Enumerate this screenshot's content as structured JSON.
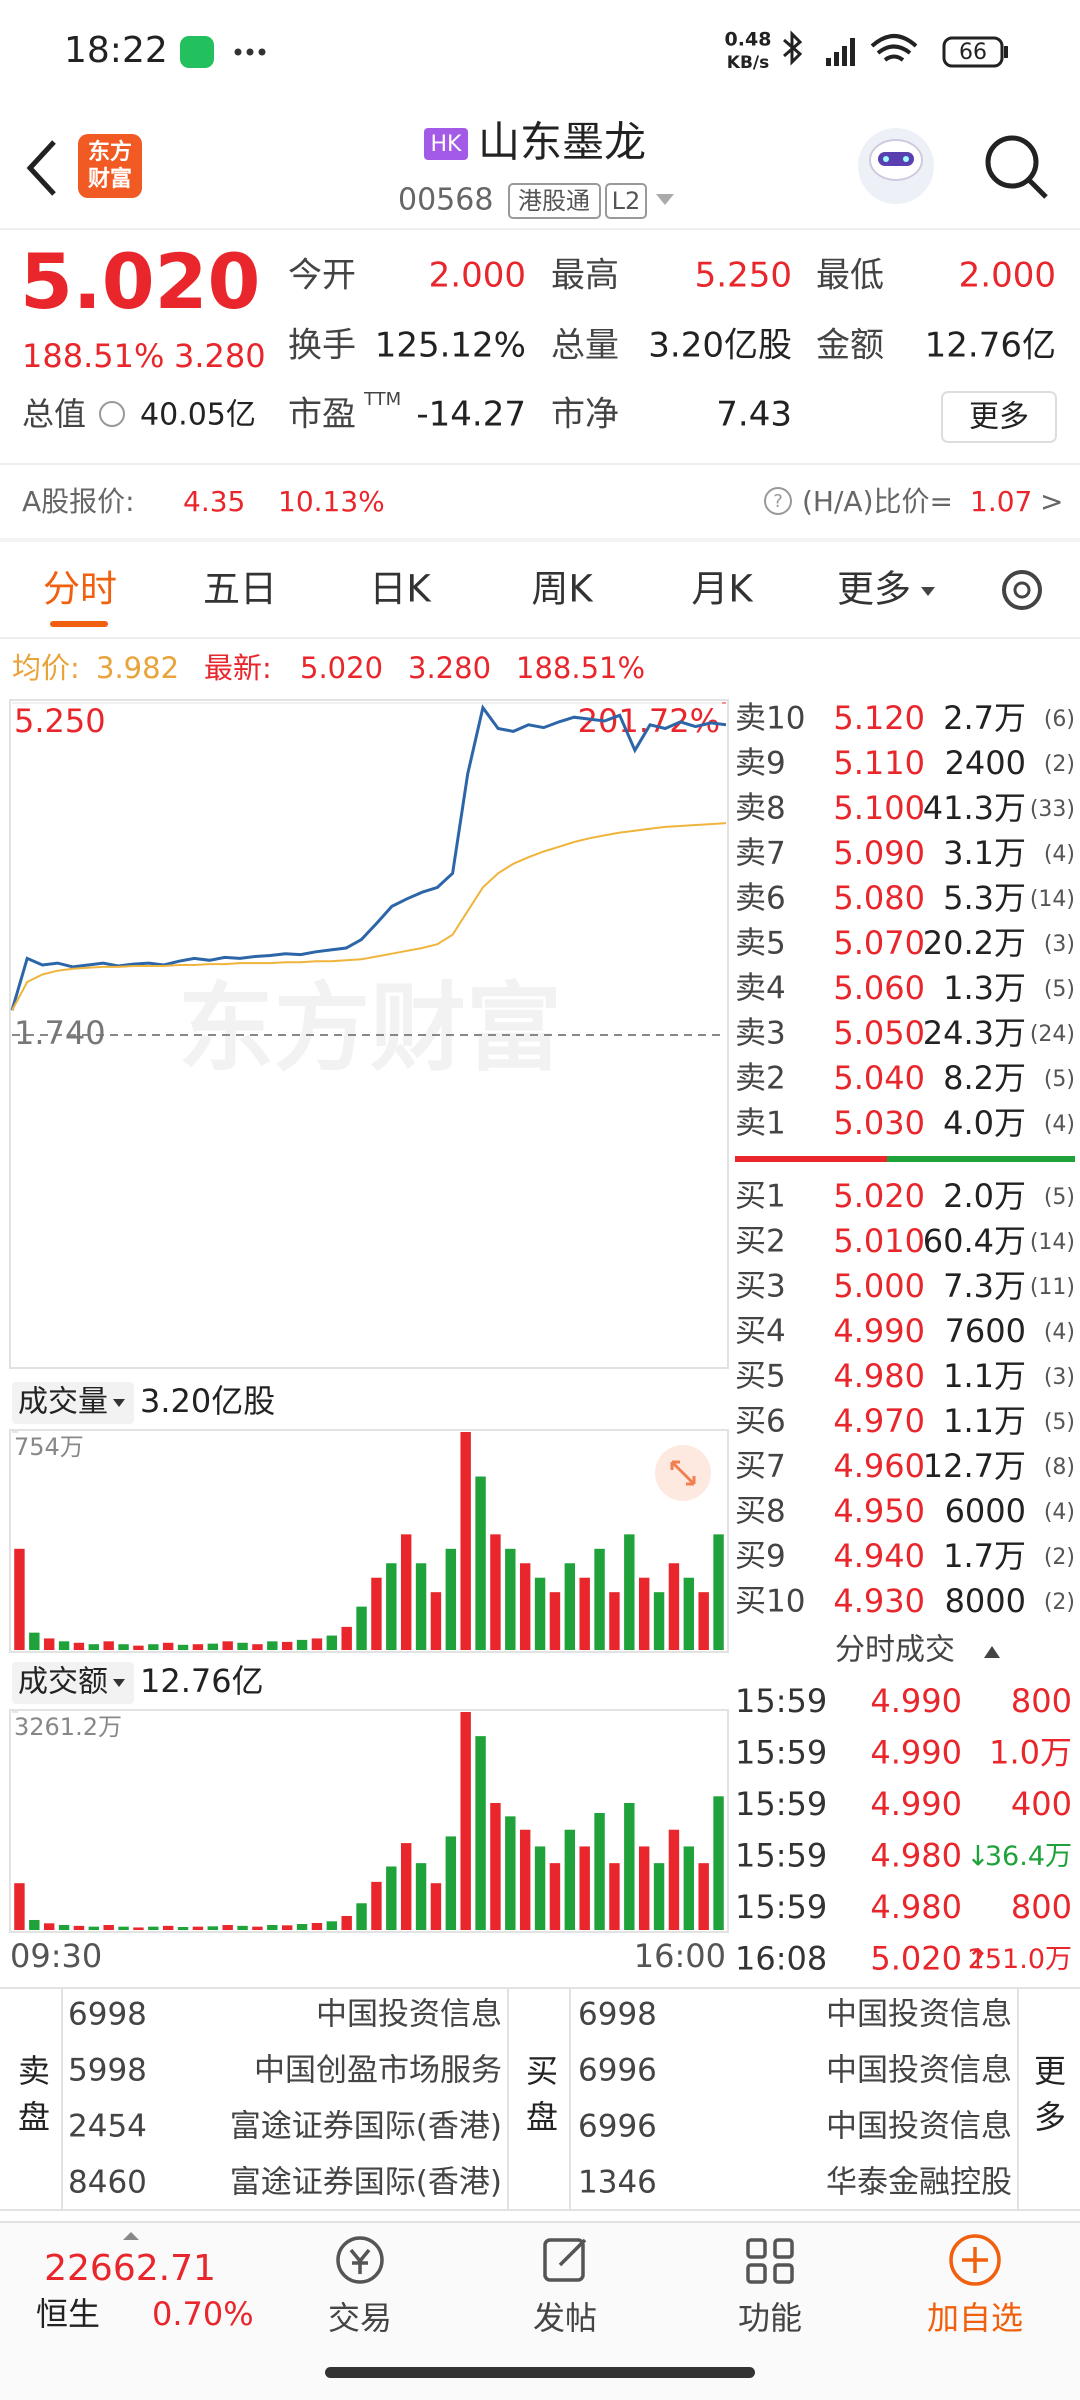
{
  "status_bar": {
    "time": "18:22",
    "speed": "0.48",
    "speed_unit": "KB/s",
    "battery": "66"
  },
  "header": {
    "logo_top": "东方",
    "logo_bottom": "财富",
    "market": "HK",
    "name": "山东墨龙",
    "code": "00568",
    "connect": "港股通",
    "level": "L2"
  },
  "quote": {
    "price": "5.020",
    "change_pct": "188.51%",
    "change": "3.280",
    "stats": [
      [
        "今开",
        "2.000"
      ],
      [
        "最高",
        "5.250"
      ],
      [
        "最低",
        "2.000"
      ],
      [
        "换手",
        "125.12%"
      ],
      [
        "总量",
        "3.20亿股"
      ],
      [
        "金额",
        "12.76亿"
      ]
    ],
    "market_cap_label": "总值",
    "market_cap": "40.05亿",
    "pe_label": "市盈",
    "pe_sup": "TTM",
    "pe": "-14.27",
    "pb_label": "市净",
    "pb": "7.43",
    "more": "更多"
  },
  "a_share": {
    "label": "A股报价:",
    "price": "4.35",
    "pct": "10.13%",
    "ratio_label": "(H/A)比价=",
    "ratio": "1.07",
    "arrow": ">"
  },
  "tabs": [
    "分时",
    "五日",
    "日K",
    "周K",
    "月K",
    "更多"
  ],
  "summary": {
    "avg_label": "均价:",
    "avg": "3.982",
    "latest_label": "最新:",
    "latest": "5.020",
    "change": "3.280",
    "pct": "188.51%"
  },
  "watermark": "东方财富",
  "chart_data": [
    {
      "type": "line",
      "ylim": [
        -1.77,
        5.25
      ],
      "yticks": [
        {
          "value": 5.25,
          "label": "5.250"
        },
        {
          "value": 1.74,
          "label": "1.740"
        }
      ],
      "y2lim": [
        -201.72,
        201.72
      ],
      "y2ticks": [
        {
          "value": 201.72,
          "label": "201.72%"
        }
      ],
      "series": [
        {
          "color": "#2d66a8",
          "values": [
            2.0,
            2.55,
            2.48,
            2.5,
            2.46,
            2.48,
            2.5,
            2.47,
            2.49,
            2.5,
            2.48,
            2.52,
            2.55,
            2.53,
            2.56,
            2.55,
            2.57,
            2.58,
            2.6,
            2.59,
            2.62,
            2.64,
            2.66,
            2.75,
            2.92,
            3.1,
            3.18,
            3.25,
            3.3,
            3.45,
            4.5,
            5.2,
            4.98,
            4.95,
            5.02,
            4.99,
            5.05,
            5.1,
            5.08,
            5.06,
            5.12,
            4.75,
            5.02,
            4.98,
            5.05,
            5.0,
            5.04,
            5.02
          ]
        },
        {
          "color": "#efb43c",
          "values": [
            2.0,
            2.3,
            2.38,
            2.42,
            2.44,
            2.45,
            2.46,
            2.46,
            2.47,
            2.47,
            2.47,
            2.48,
            2.48,
            2.49,
            2.49,
            2.5,
            2.5,
            2.5,
            2.51,
            2.51,
            2.52,
            2.52,
            2.53,
            2.54,
            2.57,
            2.6,
            2.63,
            2.66,
            2.7,
            2.8,
            3.05,
            3.3,
            3.45,
            3.55,
            3.62,
            3.68,
            3.73,
            3.78,
            3.82,
            3.85,
            3.88,
            3.9,
            3.92,
            3.94,
            3.95,
            3.96,
            3.97,
            3.98
          ]
        }
      ]
    },
    {
      "type": "bar",
      "title": "成交量",
      "total": "3.20亿股",
      "ylim": [
        0,
        754
      ],
      "yticks": [
        {
          "value": 754,
          "label": "754万"
        }
      ],
      "colors": [
        "#e8262b",
        "#1fa23a"
      ],
      "values": [
        350,
        60,
        40,
        30,
        25,
        20,
        30,
        20,
        15,
        20,
        25,
        18,
        20,
        22,
        30,
        25,
        20,
        30,
        28,
        35,
        40,
        50,
        80,
        150,
        250,
        300,
        400,
        300,
        200,
        350,
        754,
        600,
        400,
        350,
        300,
        250,
        200,
        300,
        250,
        350,
        200,
        400,
        250,
        200,
        300,
        250,
        200,
        400
      ]
    },
    {
      "type": "bar",
      "title": "成交额",
      "total": "12.76亿",
      "ylim": [
        0,
        3261.2
      ],
      "yticks": [
        {
          "value": 3261.2,
          "label": "3261.2万"
        }
      ],
      "colors": [
        "#e8262b",
        "#1fa23a"
      ],
      "time_labels": [
        "09:30",
        "16:00"
      ],
      "values": [
        700,
        150,
        100,
        75,
        62,
        50,
        75,
        50,
        38,
        50,
        62,
        45,
        50,
        55,
        75,
        62,
        50,
        75,
        70,
        90,
        105,
        130,
        210,
        400,
        720,
        950,
        1300,
        1000,
        700,
        1400,
        3261.2,
        2900,
        1900,
        1700,
        1500,
        1250,
        1000,
        1500,
        1250,
        1750,
        1000,
        1900,
        1250,
        1000,
        1500,
        1250,
        1000,
        2000
      ]
    }
  ],
  "order_book": {
    "asks": [
      {
        "label": "卖10",
        "price": "5.120",
        "volume": "2.7万",
        "count": "(6)"
      },
      {
        "label": "卖9",
        "price": "5.110",
        "volume": "2400",
        "count": "(2)"
      },
      {
        "label": "卖8",
        "price": "5.100",
        "volume": "41.3万",
        "count": "(33)"
      },
      {
        "label": "卖7",
        "price": "5.090",
        "volume": "3.1万",
        "count": "(4)"
      },
      {
        "label": "卖6",
        "price": "5.080",
        "volume": "5.3万",
        "count": "(14)"
      },
      {
        "label": "卖5",
        "price": "5.070",
        "volume": "20.2万",
        "count": "(3)"
      },
      {
        "label": "卖4",
        "price": "5.060",
        "volume": "1.3万",
        "count": "(5)"
      },
      {
        "label": "卖3",
        "price": "5.050",
        "volume": "24.3万",
        "count": "(24)"
      },
      {
        "label": "卖2",
        "price": "5.040",
        "volume": "8.2万",
        "count": "(5)"
      },
      {
        "label": "卖1",
        "price": "5.030",
        "volume": "4.0万",
        "count": "(4)"
      }
    ],
    "bids": [
      {
        "label": "买1",
        "price": "5.020",
        "volume": "2.0万",
        "count": "(5)"
      },
      {
        "label": "买2",
        "price": "5.010",
        "volume": "60.4万",
        "count": "(14)"
      },
      {
        "label": "买3",
        "price": "5.000",
        "volume": "7.3万",
        "count": "(11)"
      },
      {
        "label": "买4",
        "price": "4.990",
        "volume": "7600",
        "count": "(4)"
      },
      {
        "label": "买5",
        "price": "4.980",
        "volume": "1.1万",
        "count": "(3)"
      },
      {
        "label": "买6",
        "price": "4.970",
        "volume": "1.1万",
        "count": "(5)"
      },
      {
        "label": "买7",
        "price": "4.960",
        "volume": "12.7万",
        "count": "(8)"
      },
      {
        "label": "买8",
        "price": "4.950",
        "volume": "6000",
        "count": "(4)"
      },
      {
        "label": "买9",
        "price": "4.940",
        "volume": "1.7万",
        "count": "(2)"
      },
      {
        "label": "买10",
        "price": "4.930",
        "volume": "8000",
        "count": "(2)"
      }
    ]
  },
  "trades": {
    "title": "分时成交",
    "rows": [
      {
        "time": "15:59",
        "price": "4.990",
        "volume": "800"
      },
      {
        "time": "15:59",
        "price": "4.990",
        "volume": "1.0万"
      },
      {
        "time": "15:59",
        "price": "4.990",
        "volume": "400"
      },
      {
        "time": "15:59",
        "price": "4.980",
        "arrow": "↓",
        "volume": "36.4万"
      },
      {
        "time": "15:59",
        "price": "4.980",
        "volume": "800"
      },
      {
        "time": "16:08",
        "price": "5.020",
        "arrow": "↑",
        "volume": "251.0万"
      }
    ]
  },
  "brokers": {
    "sell_label": "卖盘",
    "sell": [
      {
        "code": "6998",
        "name": "中国投资信息"
      },
      {
        "code": "5998",
        "name": "中国创盈市场服务"
      },
      {
        "code": "2454",
        "name": "富途证券国际(香港)"
      },
      {
        "code": "8460",
        "name": "富途证券国际(香港)"
      }
    ],
    "buy_label": "买盘",
    "buy": [
      {
        "code": "6998",
        "name": "中国投资信息"
      },
      {
        "code": "6996",
        "name": "中国投资信息"
      },
      {
        "code": "6996",
        "name": "中国投资信息"
      },
      {
        "code": "1346",
        "name": "华泰金融控股"
      }
    ],
    "more": "更多"
  },
  "bottom_nav": {
    "index_value": "22662.71",
    "index_name": "恒生",
    "index_pct": "0.70%",
    "items": [
      "交易",
      "发帖",
      "功能",
      "加自选"
    ]
  }
}
